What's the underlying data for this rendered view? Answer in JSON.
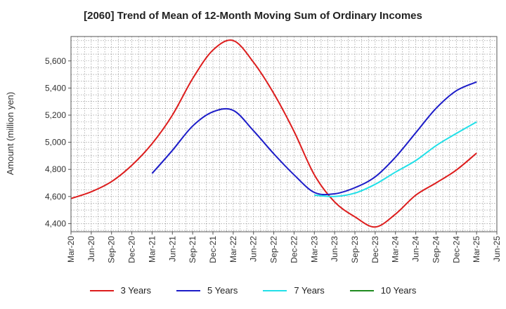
{
  "chart_data": {
    "type": "line",
    "title": "[2060]  Trend of Mean of 12-Month Moving Sum of Ordinary Incomes",
    "xlabel": "",
    "ylabel": "Amount (million yen)",
    "x": [
      "Mar-20",
      "Jun-20",
      "Sep-20",
      "Dec-20",
      "Mar-21",
      "Jun-21",
      "Sep-21",
      "Dec-21",
      "Mar-22",
      "Jun-22",
      "Sep-22",
      "Dec-22",
      "Mar-23",
      "Jun-23",
      "Sep-23",
      "Dec-23",
      "Mar-24",
      "Jun-24",
      "Sep-24",
      "Dec-24",
      "Mar-25",
      "Jun-25"
    ],
    "yticks": [
      4400,
      4600,
      4800,
      5000,
      5200,
      5400,
      5600
    ],
    "ytick_labels": [
      "4,400",
      "4,600",
      "4,800",
      "5,000",
      "5,200",
      "5,400",
      "5,600"
    ],
    "ylim": [
      4340,
      5780
    ],
    "grid": true,
    "legend_position": "bottom",
    "series": [
      {
        "name": "3 Years",
        "color": "#dd1c1c",
        "values": [
          4585,
          4635,
          4710,
          4830,
          4990,
          5200,
          5470,
          5680,
          5750,
          5590,
          5360,
          5080,
          4760,
          4560,
          4450,
          4375,
          4470,
          4610,
          4700,
          4795,
          4920,
          null
        ]
      },
      {
        "name": "5 Years",
        "color": "#1c1cc8",
        "values": [
          null,
          null,
          null,
          null,
          4770,
          4940,
          5120,
          5225,
          5235,
          5085,
          4915,
          4760,
          4630,
          4620,
          4665,
          4745,
          4890,
          5070,
          5250,
          5380,
          5445,
          null
        ]
      },
      {
        "name": "7 Years",
        "color": "#22e0e8",
        "values": [
          null,
          null,
          null,
          null,
          null,
          null,
          null,
          null,
          null,
          null,
          null,
          null,
          4610,
          4600,
          4625,
          4690,
          4780,
          4865,
          4975,
          5065,
          5150,
          null
        ]
      },
      {
        "name": "10 Years",
        "color": "#1f8a1f",
        "values": [
          null,
          null,
          null,
          null,
          null,
          null,
          null,
          null,
          null,
          null,
          null,
          null,
          null,
          null,
          null,
          null,
          null,
          null,
          null,
          null,
          null,
          null
        ]
      }
    ]
  }
}
